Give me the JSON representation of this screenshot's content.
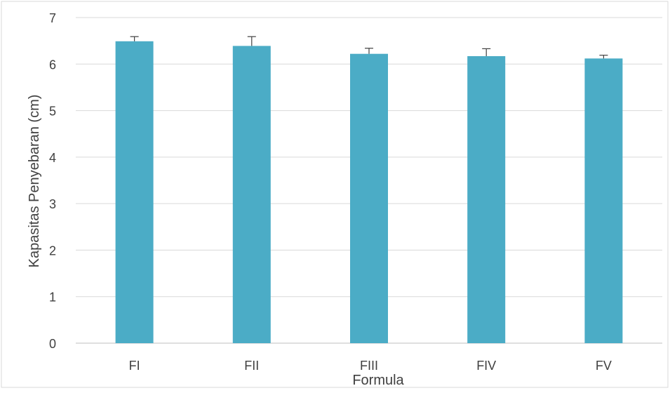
{
  "chart_data": {
    "type": "bar",
    "categories": [
      "FI",
      "FII",
      "FIII",
      "FIV",
      "FV"
    ],
    "values": [
      6.49,
      6.39,
      6.22,
      6.17,
      6.12
    ],
    "error_bars": [
      0.1,
      0.2,
      0.12,
      0.16,
      0.07
    ],
    "xlabel": "Formula",
    "ylabel": "Kapasitas Penyebaran (cm)",
    "ylim": [
      0,
      7
    ],
    "yticks": [
      "0",
      "1",
      "2",
      "3",
      "4",
      "5",
      "6",
      "7"
    ],
    "grid": true,
    "legend": "none",
    "bar_color": "#4bacc6",
    "gridline_color": "#d9d9d9",
    "errorbar_color": "#404040"
  }
}
